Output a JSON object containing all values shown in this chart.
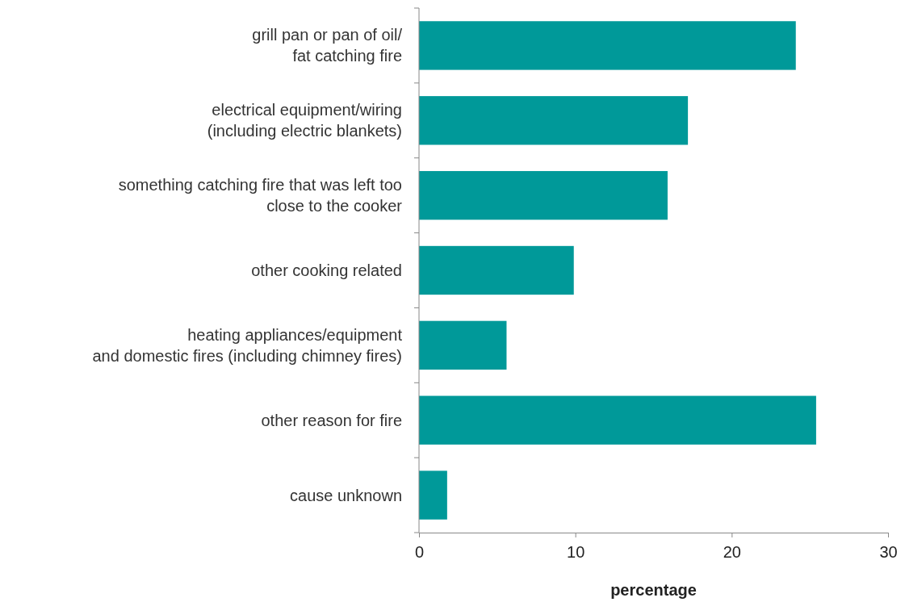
{
  "chart_data": {
    "type": "bar",
    "orientation": "horizontal",
    "xlabel": "percentage",
    "categories": [
      "grill pan or pan of oil/\nfat catching fire",
      "electrical equipment/wiring\n(including electric blankets)",
      "something catching fire that was left too\nclose to the cooker",
      "other cooking related",
      "heating appliances/equipment\nand domestic fires (including chimney fires)",
      "other reason for fire",
      "cause unknown"
    ],
    "values": [
      24.1,
      17.2,
      15.9,
      9.9,
      5.6,
      25.4,
      1.8
    ],
    "color": "#009999",
    "xlim": [
      0,
      30
    ],
    "xticks": [
      0,
      10,
      20,
      30
    ],
    "grid": false
  }
}
